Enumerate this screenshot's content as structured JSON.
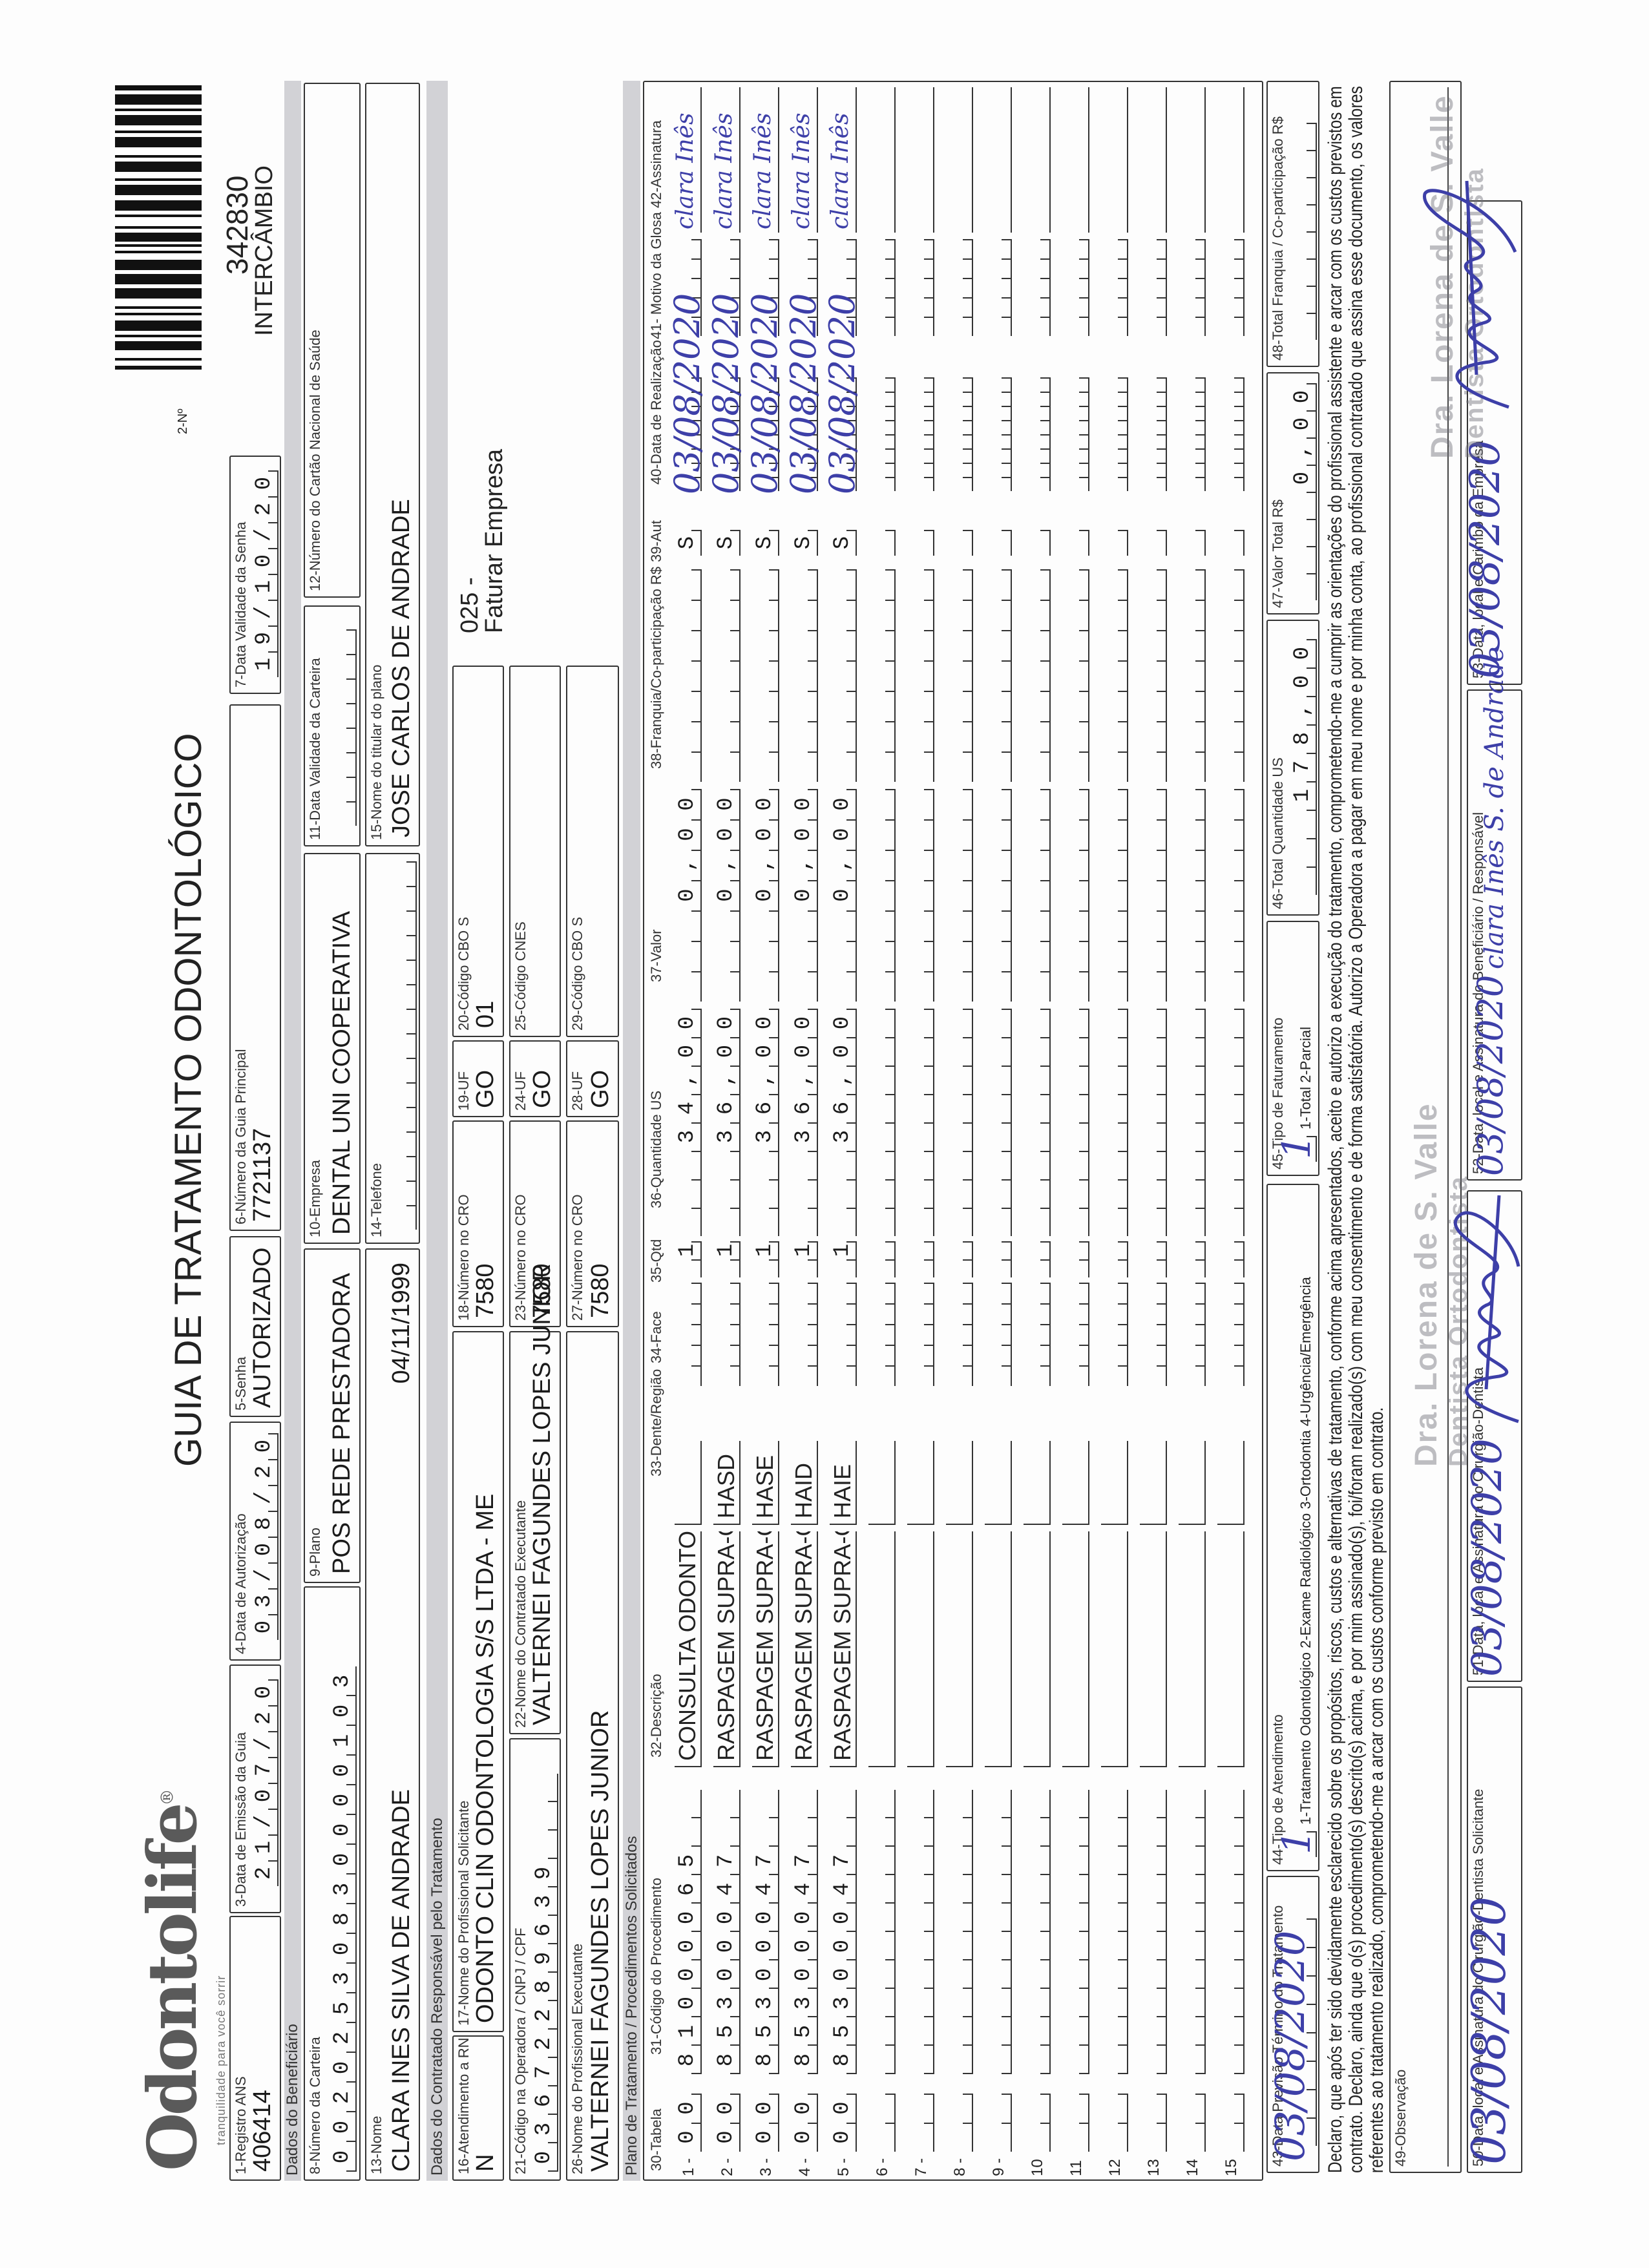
{
  "header": {
    "logo": "Odontolife",
    "logo_mark": "®",
    "tagline": "tranquilidade para você sorrir",
    "title": "GUIA DE TRATAMENTO ODONTOLÓGICO",
    "numero_label": "2-Nº",
    "numero": "342830",
    "tipo": "INTERCÂMBIO"
  },
  "sections": {
    "beneficiario": "Dados do Beneficiário",
    "contratado": "Dados do Contratado Responsável pelo Tratamento",
    "plano": "Plano de Tratamento / Procedimentos Solicitados"
  },
  "fields": {
    "registro_ans": {
      "label": "1-Registro ANS",
      "value": "406414"
    },
    "data_emissao": {
      "label": "3-Data de Emissão da Guia",
      "value": "21/07/20"
    },
    "data_autorizacao": {
      "label": "4-Data de Autorização",
      "value": "03/08/20"
    },
    "senha": {
      "label": "5-Senha",
      "value": "AUTORIZADO"
    },
    "guia_principal": {
      "label": "6-Número da Guia Principal",
      "value": "7721137"
    },
    "validade_senha": {
      "label": "7-Data Validade da Senha",
      "value": "19/10/20"
    },
    "carteira": {
      "label": "8-Número da Carteira",
      "value": "00202530830000103"
    },
    "plano": {
      "label": "9-Plano",
      "value": "POS REDE PRESTADORA"
    },
    "empresa": {
      "label": "10-Empresa",
      "value": "DENTAL UNI COOPERATIVA"
    },
    "validade_carteira": {
      "label": "11-Data Validade da Carteira",
      "value": ""
    },
    "cartao_nacional": {
      "label": "12-Número do Cartão Nacional de Saúde",
      "value": ""
    },
    "nome": {
      "label": "13-Nome",
      "value": "CLARA INES SILVA DE ANDRADE",
      "data_nascimento": "04/11/1999"
    },
    "telefone": {
      "label": "14-Telefone",
      "value": ""
    },
    "titular": {
      "label": "15-Nome do titular do plano",
      "value": "JOSE CARLOS DE ANDRADE"
    },
    "atendimento_rn": {
      "label": "16-Atendimento a RN",
      "value": "N"
    },
    "profissional_solicitante": {
      "label": "17-Nome do Profissional Solicitante",
      "value": "ODONTO CLIN ODONTOLOGIA S/S LTDA - ME"
    },
    "cro_solicitante": {
      "label": "18-Número no CRO",
      "value": "7580"
    },
    "uf_solicitante": {
      "label": "19-UF",
      "value": "GO"
    },
    "cbo_solicitante": {
      "label": "20-Código CBO S",
      "value": "01"
    },
    "faturamento_codigo": "025 -",
    "faturamento_texto": "Faturar Empresa",
    "codigo_operadora": {
      "label": "21-Código na Operadora / CNPJ / CPF",
      "value": "03672289639"
    },
    "contratado_executante": {
      "label": "22-Nome do Contratado Executante",
      "value": "VALTERNEI FAGUNDES LOPES JUNIOR"
    },
    "cro_contratado": {
      "label": "23-Número no CRO",
      "value": "7580"
    },
    "uf_contratado": {
      "label": "24-UF",
      "value": "GO"
    },
    "cnes": {
      "label": "25-Código CNES",
      "value": ""
    },
    "profissional_executante": {
      "label": "26-Nome do Profissional Executante",
      "value": "VALTERNEI FAGUNDES LOPES JUNIOR"
    },
    "cro_executante": {
      "label": "27-Número no CRO",
      "value": "7580"
    },
    "uf_executante": {
      "label": "28-UF",
      "value": "GO"
    },
    "cbo_executante": {
      "label": "29-Código CBO S",
      "value": ""
    }
  },
  "table": {
    "headers": {
      "tabela": "30-Tabela",
      "codigo": "31-Código do Procedimento",
      "descricao": "32-Descrição",
      "dente": "33-Dente/Região",
      "face": "34-Face",
      "qtd": "35-Qtd",
      "qtd_us": "36-Quantidade US",
      "valor": "37-Valor",
      "franquia": "38-Franquia/Co-participação R$",
      "aut": "39-Aut",
      "data": "40-Data de Realização",
      "glosa_assinatura": "41- Motivo da Glosa  42-Assinatura"
    },
    "rows": [
      {
        "num": "1 -",
        "tabela": "00",
        "codigo": "81000065",
        "descricao": "CONSULTA ODONTOLOGICA",
        "dente": "",
        "qtd": "1",
        "qtd_us": "34,00",
        "valor": "0,00",
        "aut": "S",
        "data": "03/08/2020",
        "assinatura": "clara Inês"
      },
      {
        "num": "2 -",
        "tabela": "00",
        "codigo": "85300047",
        "descricao": "RASPAGEM SUPRA-GENGIVAL",
        "dente": "HASD",
        "qtd": "1",
        "qtd_us": "36,00",
        "valor": "0,00",
        "aut": "S",
        "data": "03/08/2020",
        "assinatura": "clara Inês"
      },
      {
        "num": "3 -",
        "tabela": "00",
        "codigo": "85300047",
        "descricao": "RASPAGEM SUPRA-GENGIVAL",
        "dente": "HASE",
        "qtd": "1",
        "qtd_us": "36,00",
        "valor": "0,00",
        "aut": "S",
        "data": "03/08/2020",
        "assinatura": "clara Inês"
      },
      {
        "num": "4 -",
        "tabela": "00",
        "codigo": "85300047",
        "descricao": "RASPAGEM SUPRA-GENGIVAL",
        "dente": "HAID",
        "qtd": "1",
        "qtd_us": "36,00",
        "valor": "0,00",
        "aut": "S",
        "data": "03/08/2020",
        "assinatura": "clara Inês"
      },
      {
        "num": "5 -",
        "tabela": "00",
        "codigo": "85300047",
        "descricao": "RASPAGEM SUPRA-GENGIVAL",
        "dente": "HAIE",
        "qtd": "1",
        "qtd_us": "36,00",
        "valor": "0,00",
        "aut": "S",
        "data": "03/08/2020",
        "assinatura": "clara Inês"
      },
      {
        "num": "6 -"
      },
      {
        "num": "7 -"
      },
      {
        "num": "8 -"
      },
      {
        "num": "9 -"
      },
      {
        "num": "10"
      },
      {
        "num": "11"
      },
      {
        "num": "12"
      },
      {
        "num": "13"
      },
      {
        "num": "14"
      },
      {
        "num": "15"
      }
    ]
  },
  "totals": {
    "data_previsao": {
      "label": "43-Data Previsão Término do Tratamento",
      "value": "03/08/2020"
    },
    "tipo_atendimento": {
      "label": "44-Tipo de Atendimento",
      "value": "1",
      "options": "1-Tratamento Odontológico  2-Exame Radiológico  3-Ortodontia  4-Urgência/Emergência"
    },
    "tipo_faturamento": {
      "label": "45-Tipo de Faturamento",
      "value": "1",
      "options": "1-Total  2-Parcial"
    },
    "total_us": {
      "label": "46-Total Quantidade US",
      "value": "178,00"
    },
    "valor_total": {
      "label": "47-Valor Total R$",
      "value": "0,00"
    },
    "total_franquia": {
      "label": "48-Total Franquia / Co-participação R$",
      "value": ""
    }
  },
  "declaracao": [
    "Declaro, que após ter sido devidamente esclarecido sobre os propósitos, riscos, custos e alternativas de tratamento, conforme acima apresentados, aceito e autorizo a execução do tratamento, comprometendo-me a cumprir as orientações do profissional assistente e arcar com os custos previstos em",
    "contrato. Declaro, ainda que o(s) procedimento(s) descrito(s) acima, e por mim assinado(s), foi/foram realizado(s) com meu consentimento e de forma satisfatória. Autorizo a Operadora a pagar em meu nome e por minha conta, ao profissional contratado que assina esse documento, os valores",
    "referentes ao tratamento realizado, comprometendo-me a arcar com os custos conforme previsto em contrato."
  ],
  "observacao": {
    "label": "49-Observação",
    "value": ""
  },
  "signatures": {
    "solicitante": {
      "label": "50-Data, local e Assinatura do Cirurgião-Dentista Solicitante",
      "date": "03/08/2020"
    },
    "dentista": {
      "label": "51-Data, local e Assinatura do Cirurgião-Dentista",
      "date": "03/08/2020"
    },
    "beneficiario": {
      "label": "52-Data, local e Assinatura do Beneficiário / Responsável",
      "date": "03/08/2020",
      "signature": "clara Inês S. de Andrade"
    },
    "empresa": {
      "label": "53-Data, local e Carimbo da Empresa",
      "date": "03/08/2020"
    }
  },
  "stamps": [
    "Dra. Lorena de S. Valle",
    "Dentista Ortodontista"
  ],
  "colors": {
    "ink": "#3d3fa8",
    "section_bar": "#d2d2d6"
  }
}
